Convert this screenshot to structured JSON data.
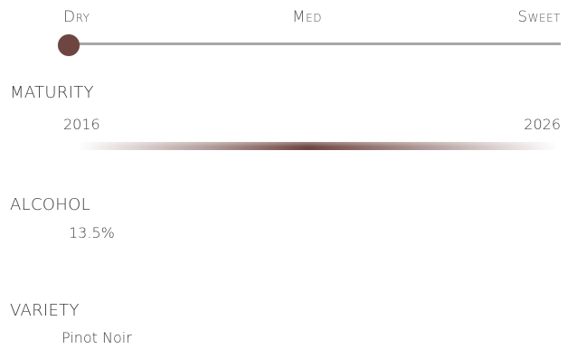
{
  "sweetness": {
    "labels": {
      "dry": "Dry",
      "med": "Med",
      "sweet": "Sweet"
    },
    "value": 0
  },
  "maturity": {
    "title": "MATURITY",
    "start_year": "2016",
    "end_year": "2026"
  },
  "alcohol": {
    "title": "ALCOHOL",
    "value": "13.5%"
  },
  "variety": {
    "title": "VARIETY",
    "value": "Pinot Noir"
  },
  "colors": {
    "accent": "#6e4540",
    "track": "#a7a7a7"
  }
}
